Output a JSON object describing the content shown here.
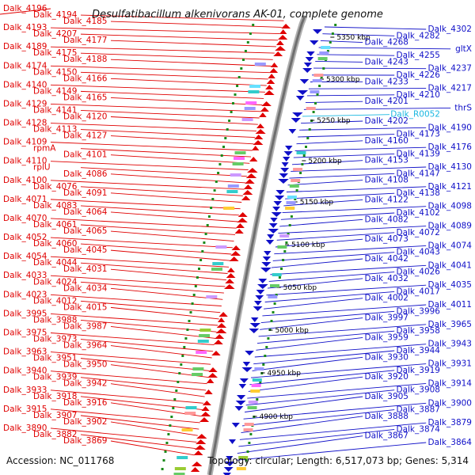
{
  "title": "Desulfatibacillum alkenivorans AK-01, complete genome",
  "accession": "Accession: NC_011768",
  "summary": "Topology: circular; Length: 6,517,073 bp; Genes: 5,314",
  "colors": {
    "forward_gene": "#e00000",
    "reverse_gene": "#1010c8",
    "rna_gene": "#19b7e0",
    "backbone": "#888888",
    "tick": "#1a8a1a"
  },
  "kbp_marks": [
    "5350 kbp",
    "5300 kbp",
    "5250 kbp",
    "5200 kbp",
    "5150 kbp",
    "5100 kbp",
    "5050 kbp",
    "5000 kbp",
    "4950 kbp",
    "4900 kbp"
  ],
  "left_labels": [
    "Dalk_4196",
    "Dalk_4194",
    "Dalk_4185",
    "Dalk_4193",
    "Dalk_4207",
    "Dalk_4177",
    "Dalk_4189",
    "Dalk_4175",
    "Dalk_4188",
    "Dalk_4174",
    "Dalk_4150",
    "Dalk_4166",
    "Dalk_4140",
    "Dalk_4149",
    "Dalk_4165",
    "Dalk_4129",
    "Dalk_4141",
    "Dalk_4120",
    "Dalk_4128",
    "Dalk_4113",
    "Dalk_4127",
    "Dalk_4109",
    "rpmA",
    "Dalk_4101",
    "Dalk_4110",
    "rplU",
    "Dalk_4086",
    "Dalk_4100",
    "Dalk_4076",
    "Dalk_4091",
    "Dalk_4071",
    "Dalk_4083",
    "Dalk_4064",
    "Dalk_4070",
    "Dalk_4061",
    "Dalk_4065",
    "Dalk_4052",
    "Dalk_4060",
    "Dalk_4045",
    "Dalk_4054",
    "Dalk_4044",
    "Dalk_4031",
    "Dalk_4033",
    "Dalk_4024",
    "Dalk_4034",
    "Dalk_4023",
    "Dalk_4012",
    "Dalk_4015",
    "Dalk_3995",
    "Dalk_3988",
    "Dalk_3987",
    "Dalk_3975",
    "Dalk_3973",
    "Dalk_3964",
    "Dalk_3963",
    "Dalk_3951",
    "Dalk_3950",
    "Dalk_3940",
    "Dalk_3939",
    "Dalk_3942",
    "Dalk_3933",
    "Dalk_3918",
    "Dalk_3916",
    "Dalk_3915",
    "Dalk_3907",
    "Dalk_3902",
    "Dalk_3890",
    "Dalk_3882",
    "Dalk_3869"
  ],
  "right_labels": [
    "Dalk_4302",
    "Dalk_4282",
    "Dalk_4268",
    "gltX",
    "Dalk_4255",
    "Dalk_4243",
    "Dalk_4237",
    "Dalk_4226",
    "Dalk_4233",
    "Dalk_4217",
    "Dalk_4210",
    "Dalk_4201",
    "thrS",
    "Dalk_R0052",
    "Dalk_4202",
    "Dalk_4190",
    "Dalk_4173",
    "Dalk_4160",
    "Dalk_4176",
    "Dalk_4139",
    "Dalk_4153",
    "Dalk_4130",
    "Dalk_4147",
    "Dalk_4108",
    "Dalk_4121",
    "Dalk_4138",
    "Dalk_4122",
    "Dalk_4098",
    "Dalk_4102",
    "Dalk_4082",
    "Dalk_4089",
    "Dalk_4072",
    "Dalk_4073",
    "Dalk_4074",
    "Dalk_4043",
    "Dalk_4042",
    "Dalk_4041",
    "Dalk_4026",
    "Dalk_4032",
    "Dalk_4035",
    "Dalk_4017",
    "Dalk_4002",
    "Dalk_4011",
    "Dalk_3996",
    "Dalk_3997",
    "Dalk_3965",
    "Dalk_3958",
    "Dalk_3959",
    "Dalk_3943",
    "Dalk_3944",
    "Dalk_3930",
    "Dalk_3931",
    "Dalk_3919",
    "Dalk_3920",
    "Dalk_3914",
    "Dalk_3908",
    "Dalk_3905",
    "Dalk_3900",
    "Dalk_3887",
    "Dalk_3888",
    "Dalk_3879",
    "Dalk_3874",
    "Dalk_3867",
    "Dalk_3864"
  ]
}
